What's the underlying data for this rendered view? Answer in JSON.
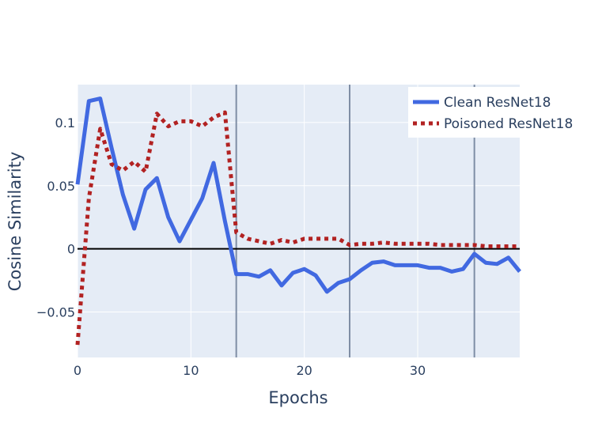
{
  "chart_data": {
    "type": "line",
    "xlabel": "Epochs",
    "ylabel": "Cosine Similarity",
    "xlim": [
      0,
      39
    ],
    "ylim": [
      -0.086,
      0.13
    ],
    "x_ticks": [
      0,
      10,
      20,
      30
    ],
    "x_tick_labels": [
      "0",
      "10",
      "20",
      "30"
    ],
    "y_ticks": [
      -0.05,
      0,
      0.05,
      0.1
    ],
    "y_tick_labels": [
      "−0.05",
      "0",
      "0.05",
      "0.1"
    ],
    "zero_line": 0,
    "vertical_lines": [
      14,
      24,
      35
    ],
    "grid": true,
    "legend_position": "top-right",
    "x": [
      0,
      1,
      2,
      3,
      4,
      5,
      6,
      7,
      8,
      9,
      10,
      11,
      12,
      13,
      14,
      15,
      16,
      17,
      18,
      19,
      20,
      21,
      22,
      23,
      24,
      25,
      26,
      27,
      28,
      29,
      30,
      31,
      32,
      33,
      34,
      35,
      36,
      37,
      38,
      39
    ],
    "series": [
      {
        "name": "Clean ResNet18",
        "color": "#4169e1",
        "dash": "solid",
        "values": [
          0.051,
          0.117,
          0.119,
          0.08,
          0.043,
          0.016,
          0.047,
          0.056,
          0.025,
          0.006,
          0.023,
          0.04,
          0.068,
          0.022,
          -0.02,
          -0.02,
          -0.022,
          -0.017,
          -0.029,
          -0.019,
          -0.016,
          -0.021,
          -0.034,
          -0.027,
          -0.024,
          -0.017,
          -0.011,
          -0.01,
          -0.013,
          -0.013,
          -0.013,
          -0.015,
          -0.015,
          -0.018,
          -0.016,
          -0.004,
          -0.011,
          -0.012,
          -0.007,
          -0.018
        ]
      },
      {
        "name": "Poisoned ResNet18",
        "color": "#b22222",
        "dash": "dotted",
        "values": [
          -0.076,
          0.04,
          0.095,
          0.067,
          0.062,
          0.069,
          0.061,
          0.107,
          0.097,
          0.101,
          0.101,
          0.097,
          0.104,
          0.108,
          0.013,
          0.008,
          0.006,
          0.004,
          0.007,
          0.005,
          0.008,
          0.008,
          0.008,
          0.008,
          0.003,
          0.004,
          0.004,
          0.005,
          0.004,
          0.004,
          0.004,
          0.004,
          0.003,
          0.003,
          0.003,
          0.003,
          0.002,
          0.002,
          0.002,
          0.002
        ]
      }
    ]
  }
}
